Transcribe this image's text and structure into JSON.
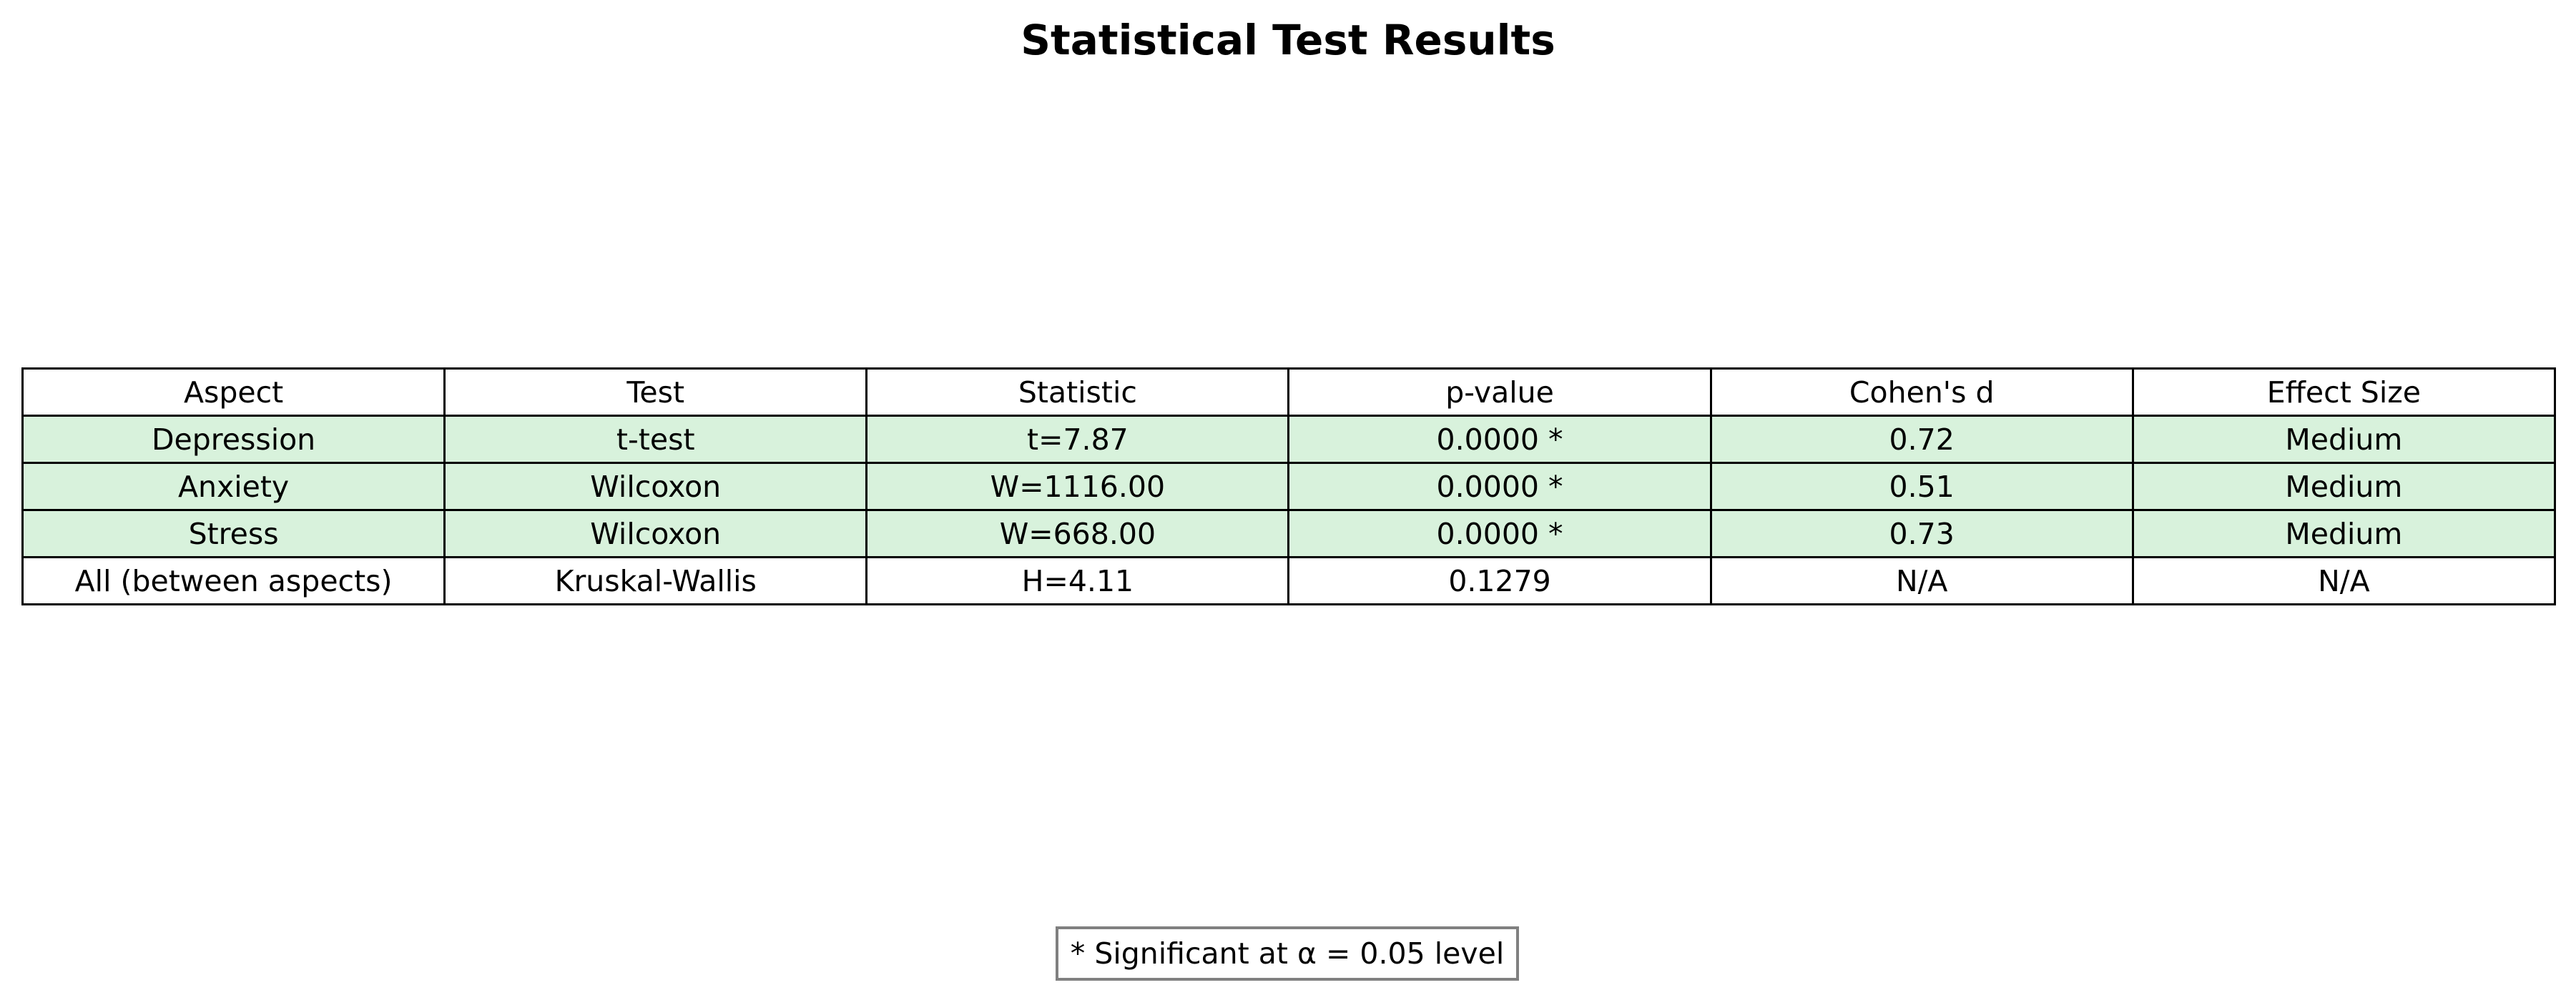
{
  "chart_data": {
    "type": "table",
    "title": "Statistical Test Results",
    "columns": [
      "Aspect",
      "Test",
      "Statistic",
      "p-value",
      "Cohen's d",
      "Effect Size"
    ],
    "rows": [
      {
        "cells": [
          "Depression",
          "t-test",
          "t=7.87",
          "0.0000 *",
          "0.72",
          "Medium"
        ],
        "significant": true
      },
      {
        "cells": [
          "Anxiety",
          "Wilcoxon",
          "W=1116.00",
          "0.0000 *",
          "0.51",
          "Medium"
        ],
        "significant": true
      },
      {
        "cells": [
          "Stress",
          "Wilcoxon",
          "W=668.00",
          "0.0000 *",
          "0.73",
          "Medium"
        ],
        "significant": true
      },
      {
        "cells": [
          "All (between aspects)",
          "Kruskal-Wallis",
          "H=4.11",
          "0.1279",
          "N/A",
          "N/A"
        ],
        "significant": false
      }
    ],
    "footnote": "* Significant at α = 0.05 level",
    "colors": {
      "significant_fill": "#d8f2dc",
      "default_fill": "#ffffff",
      "border": "#000000",
      "note_border": "#808080"
    }
  }
}
